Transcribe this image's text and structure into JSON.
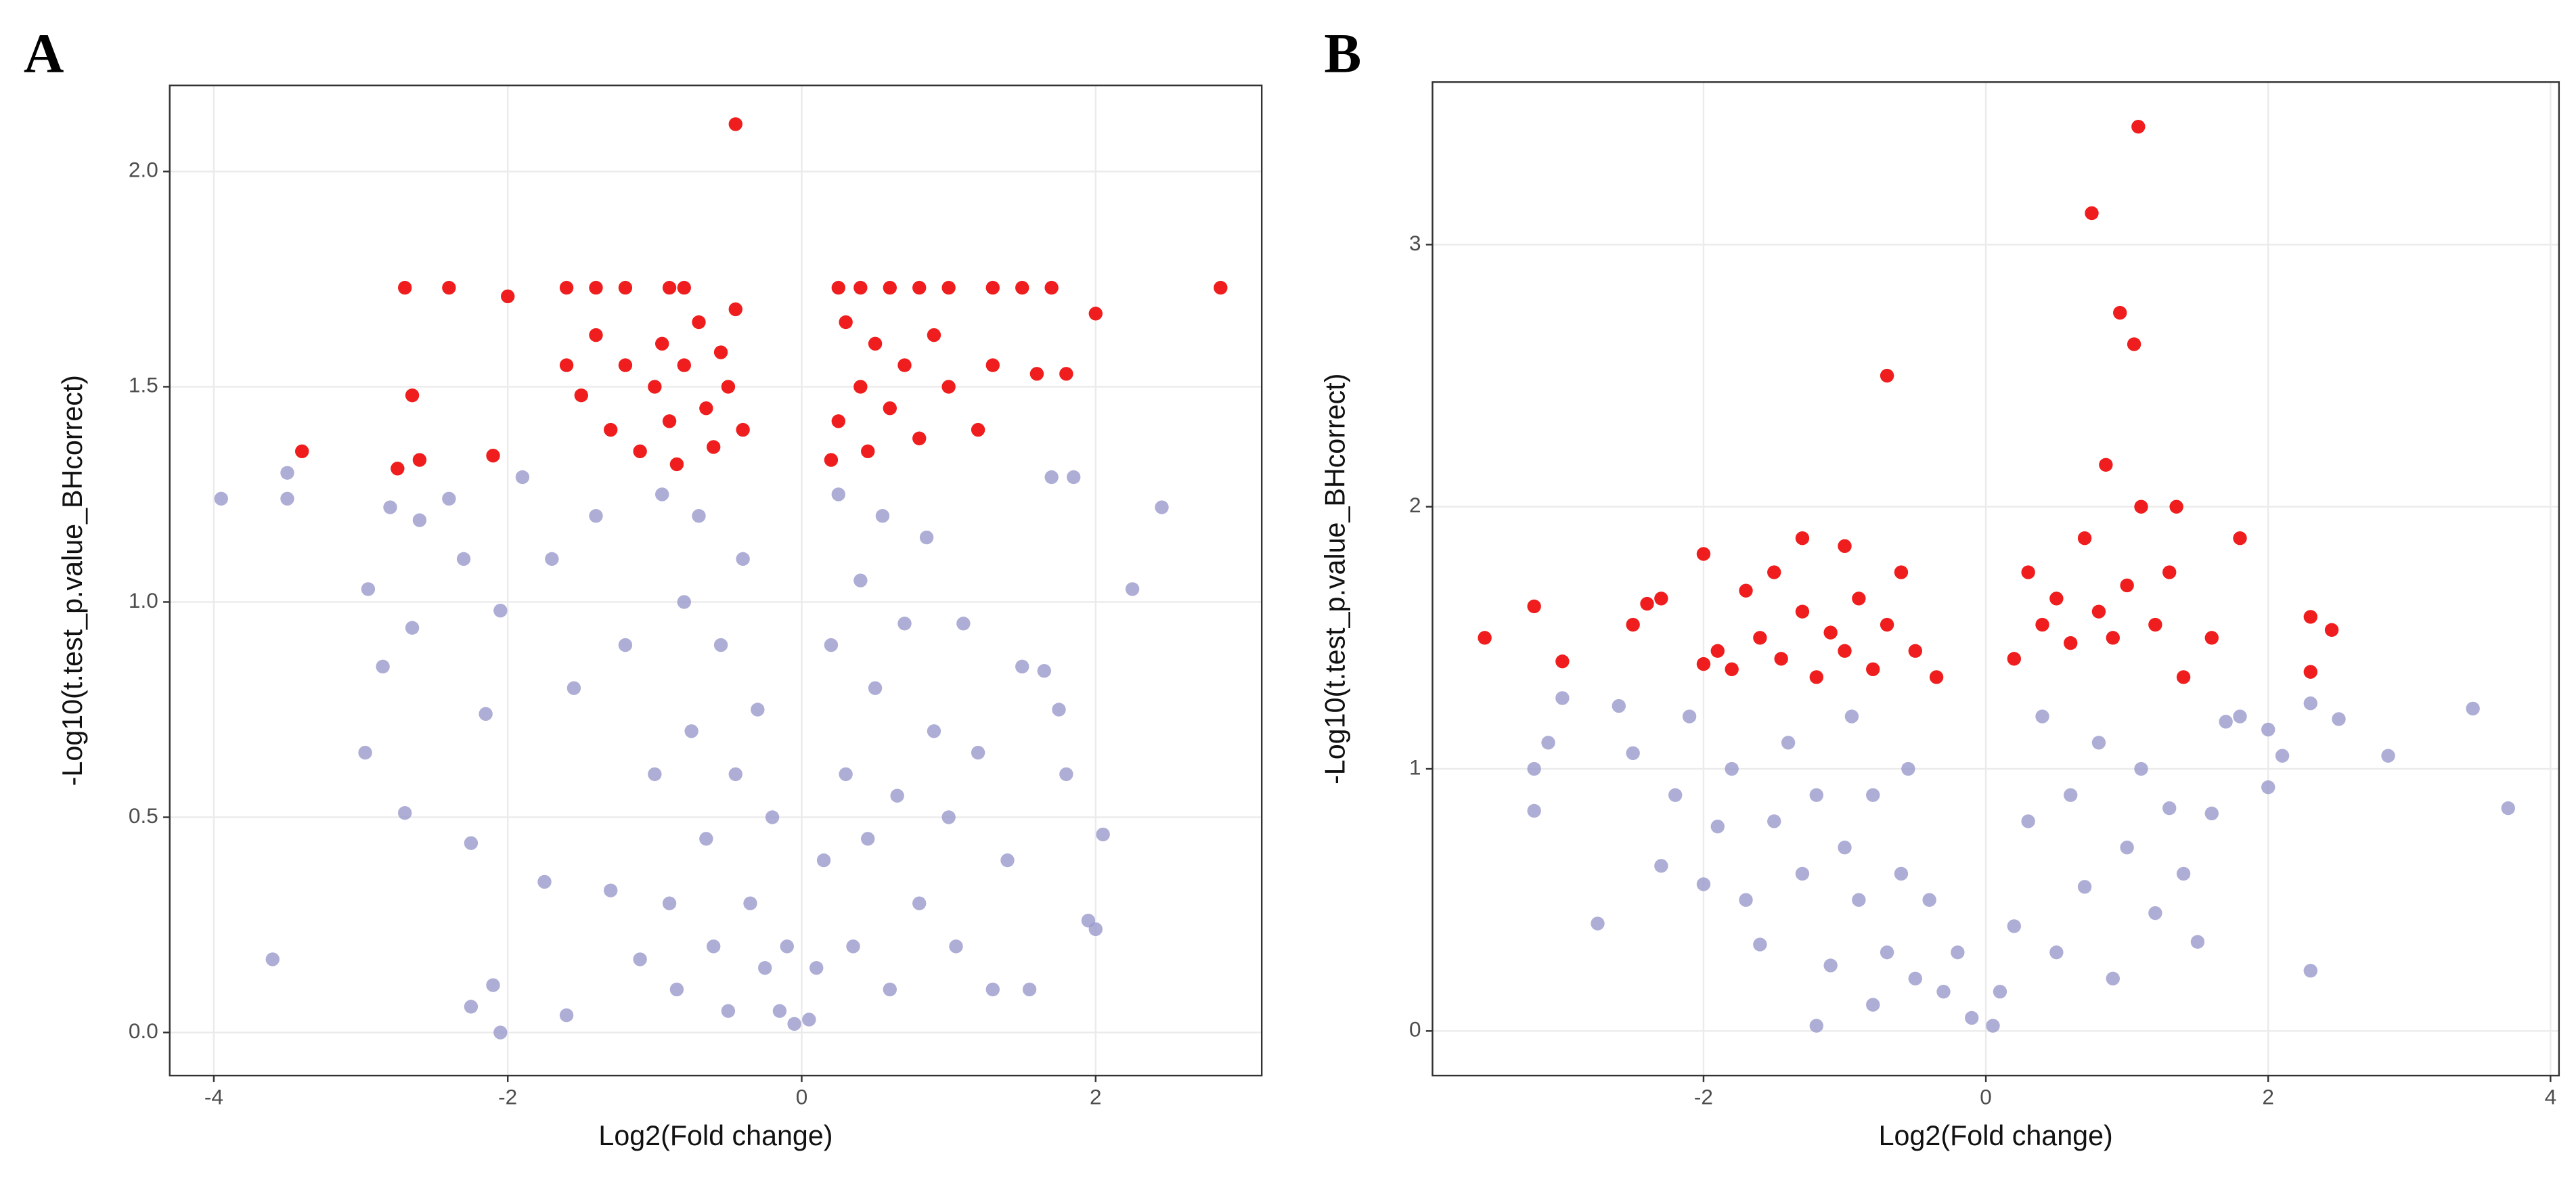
{
  "chart_data": [
    {
      "type": "scatter",
      "title": "A",
      "xlabel": "Log2(Fold change)",
      "ylabel": "-Log10(t.test_p.value_BHcorrect)",
      "xlim": [
        -4.3,
        3.13
      ],
      "ylim": [
        -0.1,
        2.2
      ],
      "xticks": [
        -4,
        -2,
        0,
        2
      ],
      "yticks": [
        {
          "value": 0,
          "label": "0.0"
        },
        0.5,
        {
          "value": 1,
          "label": "1.0"
        },
        1.5,
        {
          "value": 2,
          "label": "2.0"
        }
      ],
      "grid": true,
      "series": [
        {
          "color": "#9999cc",
          "x": [
            -3.95,
            -3.6,
            -3.5,
            -3.5,
            -2.95,
            -2.97,
            -2.85,
            -2.8,
            -2.7,
            -2.65,
            -2.6,
            -2.4,
            -2.3,
            -2.25,
            -2.25,
            -2.15,
            -2.1,
            -2.05,
            -2.05,
            -1.9,
            -1.75,
            -1.7,
            -1.6,
            -1.55,
            -1.4,
            -1.3,
            -1.2,
            -1.1,
            -1.0,
            -0.95,
            -0.9,
            -0.85,
            -0.8,
            -0.75,
            -0.7,
            -0.65,
            -0.6,
            -0.55,
            -0.5,
            -0.45,
            -0.4,
            -0.35,
            -0.3,
            -0.25,
            -0.2,
            -0.15,
            -0.1,
            -0.05,
            0.05,
            0.1,
            0.15,
            0.2,
            0.25,
            0.3,
            0.35,
            0.4,
            0.45,
            0.5,
            0.55,
            0.6,
            0.65,
            0.7,
            0.8,
            0.85,
            0.9,
            1.0,
            1.05,
            1.1,
            1.2,
            1.3,
            1.4,
            1.5,
            1.55,
            1.65,
            1.7,
            1.75,
            1.8,
            1.85,
            1.95,
            2.0,
            2.05,
            2.25,
            2.45
          ],
          "values": [
            1.24,
            0.17,
            1.3,
            1.24,
            1.03,
            0.65,
            0.85,
            1.22,
            0.51,
            0.94,
            1.19,
            1.24,
            1.1,
            0.44,
            0.06,
            0.74,
            0.11,
            0.0,
            0.98,
            1.29,
            0.35,
            1.1,
            0.04,
            0.8,
            1.2,
            0.33,
            0.9,
            0.17,
            0.6,
            1.25,
            0.3,
            0.1,
            1.0,
            0.7,
            1.2,
            0.45,
            0.2,
            0.9,
            0.05,
            0.6,
            1.1,
            0.3,
            0.75,
            0.15,
            0.5,
            0.05,
            0.2,
            0.02,
            0.03,
            0.15,
            0.4,
            0.9,
            1.25,
            0.6,
            0.2,
            1.05,
            0.45,
            0.8,
            1.2,
            0.1,
            0.55,
            0.95,
            0.3,
            1.15,
            0.7,
            0.5,
            0.2,
            0.95,
            0.65,
            0.1,
            0.4,
            0.85,
            0.1,
            0.84,
            1.29,
            0.75,
            0.6,
            1.29,
            0.26,
            0.24,
            0.46,
            1.03,
            1.22
          ]
        },
        {
          "color": "#ee1111",
          "x": [
            -2.7,
            -2.4,
            -2.0,
            -1.6,
            -1.4,
            -1.2,
            -0.9,
            -0.8,
            -2.65,
            -2.6,
            -2.75,
            -3.4,
            -2.1,
            -1.6,
            -1.5,
            -1.4,
            -1.3,
            -1.2,
            -1.1,
            -1.0,
            -0.95,
            -0.9,
            -0.85,
            -0.8,
            -0.7,
            -0.65,
            -0.6,
            -0.55,
            -0.5,
            -0.45,
            -0.4,
            -0.45,
            0.25,
            0.4,
            0.6,
            0.8,
            1.0,
            1.3,
            1.5,
            1.7,
            2.0,
            2.85,
            1.8,
            1.6,
            1.3,
            1.2,
            1.0,
            0.9,
            0.8,
            0.7,
            0.6,
            0.5,
            0.45,
            0.4,
            0.3,
            0.25,
            0.2
          ],
          "values": [
            1.73,
            1.73,
            1.71,
            1.73,
            1.73,
            1.73,
            1.73,
            1.73,
            1.48,
            1.33,
            1.31,
            1.35,
            1.34,
            1.55,
            1.48,
            1.62,
            1.4,
            1.55,
            1.35,
            1.5,
            1.6,
            1.42,
            1.32,
            1.55,
            1.65,
            1.45,
            1.36,
            1.58,
            1.5,
            1.68,
            1.4,
            2.11,
            1.73,
            1.73,
            1.73,
            1.73,
            1.73,
            1.73,
            1.73,
            1.73,
            1.67,
            1.73,
            1.53,
            1.53,
            1.55,
            1.4,
            1.5,
            1.62,
            1.38,
            1.55,
            1.45,
            1.6,
            1.35,
            1.5,
            1.65,
            1.42,
            1.33
          ]
        }
      ]
    },
    {
      "type": "scatter",
      "title": "B",
      "xlabel": "Log2(Fold change)",
      "ylabel": "-Log10(t.test_p.value_BHcorrect)",
      "xlim": [
        -3.92,
        4.06
      ],
      "ylim": [
        -0.17,
        3.62
      ],
      "xticks": [
        -2,
        0,
        2,
        4
      ],
      "yticks": [
        0,
        1,
        2,
        3
      ],
      "grid": true,
      "series": [
        {
          "color": "#9999cc",
          "x": [
            -3.2,
            -3.2,
            -3.1,
            -3.0,
            -2.75,
            -2.6,
            -2.5,
            -2.3,
            -2.2,
            -2.1,
            -2.0,
            -1.9,
            -1.8,
            -1.7,
            -1.6,
            -1.5,
            -1.4,
            -1.3,
            -1.2,
            -1.1,
            -1.0,
            -0.95,
            -0.9,
            -0.8,
            -0.7,
            -0.6,
            -0.55,
            -0.5,
            -0.4,
            -0.3,
            -0.2,
            -0.1,
            0.05,
            0.1,
            0.2,
            0.3,
            0.4,
            0.5,
            0.6,
            0.7,
            0.8,
            0.9,
            1.0,
            1.1,
            1.2,
            1.3,
            1.4,
            1.5,
            1.6,
            1.7,
            1.8,
            2.0,
            2.0,
            2.1,
            2.3,
            2.3,
            2.5,
            2.85,
            3.45,
            3.7,
            -1.2,
            -0.8
          ],
          "values": [
            0.84,
            1.0,
            1.1,
            1.27,
            0.41,
            1.24,
            1.06,
            0.63,
            0.9,
            1.2,
            0.56,
            0.78,
            1.0,
            0.5,
            0.33,
            0.8,
            1.1,
            0.6,
            0.9,
            0.25,
            0.7,
            1.2,
            0.5,
            0.9,
            0.3,
            0.6,
            1.0,
            0.2,
            0.5,
            0.15,
            0.3,
            0.05,
            0.02,
            0.15,
            0.4,
            0.8,
            1.2,
            0.3,
            0.9,
            0.55,
            1.1,
            0.2,
            0.7,
            1.0,
            0.45,
            0.85,
            0.6,
            0.34,
            0.83,
            1.18,
            1.2,
            0.93,
            1.15,
            1.05,
            0.23,
            1.25,
            1.19,
            1.05,
            1.23,
            0.85,
            0.02,
            0.1
          ]
        },
        {
          "color": "#ee1111",
          "x": [
            -3.55,
            -3.2,
            -3.0,
            -2.5,
            -2.4,
            -2.3,
            -2.0,
            -2.0,
            -1.9,
            -1.8,
            -1.7,
            -1.6,
            -1.5,
            -1.45,
            -1.3,
            -1.3,
            -1.2,
            -1.1,
            -1.0,
            -1.0,
            -0.9,
            -0.8,
            -0.7,
            -0.7,
            -0.6,
            -0.5,
            -0.35,
            0.2,
            0.3,
            0.4,
            0.5,
            0.6,
            0.7,
            0.75,
            0.8,
            0.85,
            0.9,
            0.95,
            1.0,
            1.05,
            1.08,
            1.1,
            1.2,
            1.3,
            1.35,
            1.4,
            1.6,
            1.8,
            2.3,
            2.3,
            2.45
          ],
          "values": [
            1.5,
            1.62,
            1.41,
            1.55,
            1.63,
            1.65,
            1.82,
            1.4,
            1.45,
            1.38,
            1.68,
            1.5,
            1.75,
            1.42,
            1.88,
            1.6,
            1.35,
            1.52,
            1.85,
            1.45,
            1.65,
            1.38,
            2.5,
            1.55,
            1.75,
            1.45,
            1.35,
            1.42,
            1.75,
            1.55,
            1.65,
            1.48,
            1.88,
            3.12,
            1.6,
            2.16,
            1.5,
            2.74,
            1.7,
            2.62,
            3.45,
            2.0,
            1.55,
            1.75,
            2.0,
            1.35,
            1.5,
            1.88,
            1.58,
            1.37,
            1.53
          ]
        }
      ]
    }
  ]
}
